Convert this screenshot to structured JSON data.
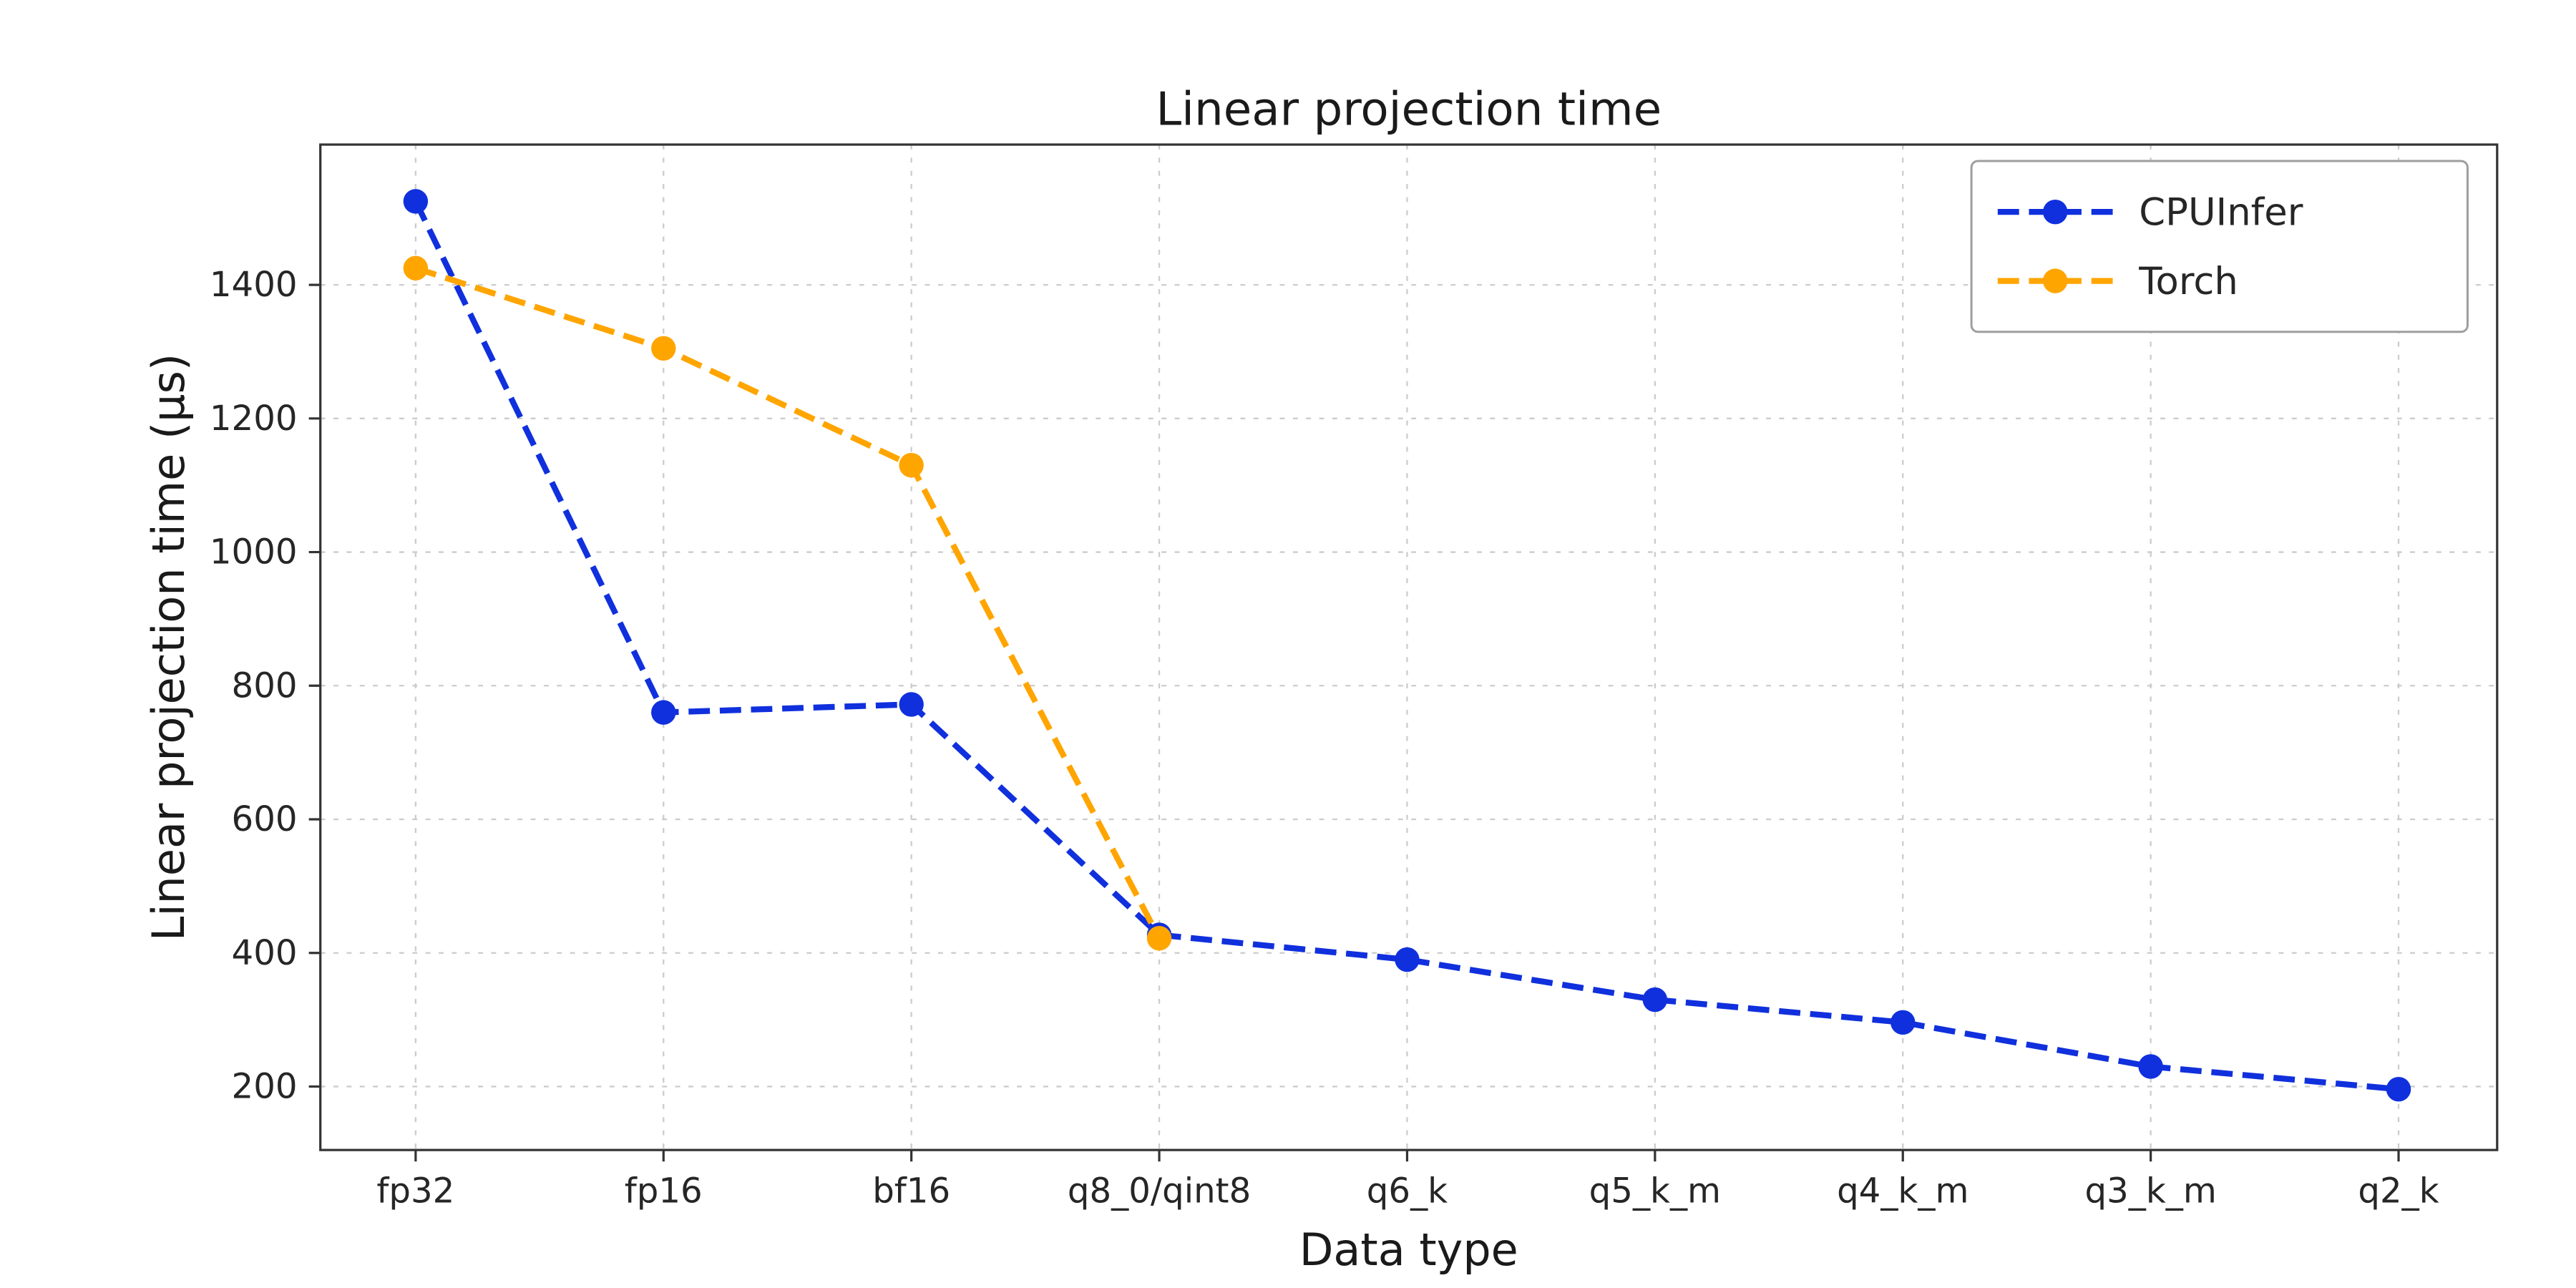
{
  "page": {
    "background": "#ffffff",
    "text_color": "#262626",
    "grid_color": "#cccccc",
    "spine_color": "#333333"
  },
  "chart_data": {
    "type": "line",
    "title": "Linear projection time",
    "xlabel": "Data type",
    "ylabel": "Linear projection time (µs)",
    "categories": [
      "fp32",
      "fp16",
      "bf16",
      "q8_0/qint8",
      "q6_k",
      "q5_k_m",
      "q4_k_m",
      "q3_k_m",
      "q2_k"
    ],
    "series": [
      {
        "name": "CPUInfer",
        "color": "#1030dd",
        "linestyle": "dashed",
        "marker": "circle",
        "values": [
          1525,
          760,
          772,
          427,
          390,
          330,
          296,
          230,
          196
        ]
      },
      {
        "name": "Torch",
        "color": "#ffa500",
        "linestyle": "dashed",
        "marker": "circle",
        "values": [
          1425,
          1305,
          1130,
          422,
          null,
          null,
          null,
          null,
          null
        ]
      }
    ],
    "ylim": [
      105,
      1610
    ],
    "yticks": [
      200,
      400,
      600,
      800,
      1000,
      1200,
      1400
    ],
    "grid": true,
    "grid_style": "dashed",
    "legend_position": "upper right"
  }
}
